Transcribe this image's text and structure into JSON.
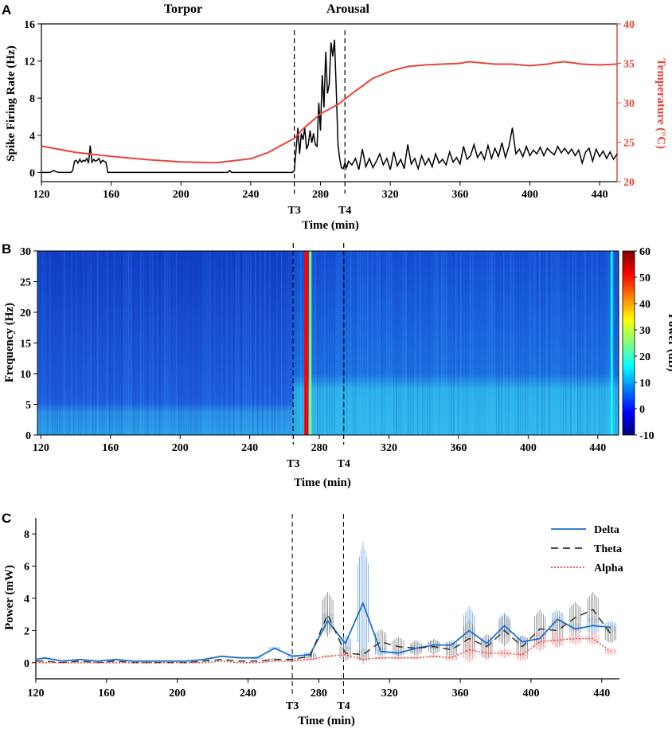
{
  "chart_data": [
    {
      "panel": "A",
      "type": "line",
      "phase_labels": [
        "Torpor",
        "Arousal"
      ],
      "xlabel": "Time (min)",
      "ylabel": "Spike Firing Rate (Hz)",
      "y2label": "Temperature (°C)",
      "xlim": [
        120,
        450
      ],
      "ylim": [
        -1,
        16
      ],
      "y2lim": [
        20,
        40
      ],
      "x_ticks": [
        120,
        160,
        200,
        240,
        280,
        320,
        360,
        400,
        440
      ],
      "y_ticks": [
        0,
        4,
        8,
        12,
        16
      ],
      "y2_ticks": [
        20,
        25,
        30,
        35,
        40
      ],
      "markers": [
        {
          "label": "T3",
          "x": 265
        },
        {
          "label": "T4",
          "x": 294
        }
      ],
      "series": [
        {
          "name": "Spike Firing Rate",
          "axis": "left",
          "color": "#000000",
          "x": [
            120,
            125,
            127,
            128,
            130,
            135,
            137,
            138,
            139,
            140,
            141,
            142,
            143,
            144,
            145,
            146,
            147,
            148,
            149,
            150,
            151,
            152,
            153,
            154,
            155,
            156,
            157,
            158,
            160,
            180,
            200,
            220,
            227,
            228,
            229,
            240,
            260,
            264,
            265,
            266,
            267,
            268,
            269,
            270,
            271,
            272,
            273,
            274,
            275,
            276,
            277,
            278,
            279,
            280,
            281,
            282,
            283,
            284,
            285,
            286,
            287,
            288,
            289,
            290,
            291,
            292,
            293,
            294,
            295,
            296,
            298,
            300,
            302,
            304,
            306,
            308,
            310,
            312,
            314,
            316,
            318,
            320,
            322,
            324,
            326,
            328,
            330,
            332,
            334,
            336,
            338,
            340,
            342,
            344,
            346,
            348,
            350,
            352,
            354,
            356,
            358,
            360,
            362,
            364,
            366,
            368,
            370,
            372,
            374,
            376,
            378,
            380,
            382,
            384,
            386,
            388,
            390,
            392,
            394,
            396,
            398,
            400,
            402,
            404,
            406,
            408,
            410,
            412,
            414,
            416,
            418,
            420,
            422,
            424,
            426,
            428,
            430,
            432,
            434,
            436,
            438,
            440,
            442,
            444,
            446,
            448,
            450
          ],
          "values": [
            0,
            0,
            0.2,
            0.1,
            0,
            0,
            0,
            0.2,
            1.2,
            1.3,
            1.0,
            1.4,
            1.1,
            1.3,
            1.2,
            1.5,
            1.0,
            2.9,
            1.1,
            1.4,
            1.2,
            1.3,
            1.5,
            1.0,
            1.3,
            1.2,
            1.1,
            0,
            0,
            0,
            0,
            0,
            0,
            0.2,
            0,
            0,
            0,
            0,
            0.2,
            2.5,
            4.8,
            2.0,
            4.2,
            3.5,
            4.8,
            2.5,
            3.0,
            4.5,
            3.2,
            4.2,
            3.0,
            2.8,
            7.5,
            4.5,
            10.5,
            7.0,
            13.0,
            8.5,
            9.5,
            14.0,
            12.5,
            14.3,
            9.0,
            3.0,
            1.5,
            0.5,
            0.4,
            1.0,
            0.5,
            1.2,
            0.8,
            1.5,
            0.3,
            2.5,
            0.6,
            1.5,
            0.5,
            1.2,
            2.0,
            0.8,
            1.5,
            0.3,
            2.2,
            0.7,
            1.4,
            0.4,
            3.0,
            0.9,
            1.5,
            0.4,
            1.8,
            0.8,
            1.5,
            0.6,
            2.0,
            1.0,
            1.4,
            0.8,
            2.2,
            1.1,
            1.6,
            0.9,
            2.8,
            1.4,
            1.8,
            3.0,
            1.6,
            2.2,
            1.4,
            2.9,
            1.5,
            2.6,
            1.7,
            3.2,
            1.6,
            2.8,
            4.8,
            2.0,
            2.5,
            1.7,
            2.8,
            1.8,
            2.4,
            2.0,
            2.7,
            1.8,
            2.6,
            2.2,
            1.9,
            2.8,
            2.1,
            2.6,
            2.0,
            2.5,
            1.8,
            2.4,
            1.0,
            2.2,
            2.6,
            1.2,
            2.5,
            1.7,
            2.3,
            1.5,
            2.2,
            1.4,
            2.0
          ]
        },
        {
          "name": "Temperature",
          "axis": "right",
          "color": "#e8453c",
          "x": [
            120,
            140,
            160,
            180,
            200,
            220,
            240,
            250,
            260,
            265,
            270,
            280,
            290,
            300,
            310,
            320,
            330,
            340,
            350,
            360,
            365,
            370,
            380,
            390,
            400,
            410,
            415,
            420,
            430,
            440,
            450
          ],
          "values": [
            24.5,
            23.7,
            23.2,
            22.8,
            22.5,
            22.4,
            22.9,
            23.7,
            24.9,
            25.5,
            26.7,
            28.6,
            29.8,
            31.5,
            33.1,
            34.0,
            34.6,
            34.8,
            34.9,
            35.0,
            35.2,
            35.1,
            34.9,
            34.9,
            34.7,
            34.9,
            35.1,
            35.2,
            34.9,
            34.8,
            34.9
          ]
        }
      ]
    },
    {
      "panel": "B",
      "type": "heatmap",
      "xlabel": "Time (min)",
      "ylabel": "Frequency (Hz)",
      "colorbar_label": "Power (dB)",
      "xlim": [
        118,
        452
      ],
      "ylim": [
        0,
        30
      ],
      "x_ticks": [
        120,
        160,
        200,
        240,
        280,
        320,
        360,
        400,
        440
      ],
      "y_ticks": [
        0,
        5,
        10,
        15,
        20,
        25,
        30
      ],
      "colorbar_ticks": [
        -10,
        0,
        10,
        20,
        30,
        40,
        50,
        60
      ],
      "colorbar_range": [
        -10,
        60
      ],
      "markers": [
        {
          "label": "T3",
          "x": 265
        },
        {
          "label": "T4",
          "x": 294
        }
      ],
      "bands": [
        {
          "x_range": [
            118,
            265
          ],
          "freq_range": [
            0,
            4
          ],
          "power_db": 12
        },
        {
          "x_range": [
            118,
            265
          ],
          "freq_range": [
            4,
            30
          ],
          "power_db": 2
        },
        {
          "x_range": [
            265,
            452
          ],
          "freq_range": [
            0,
            8
          ],
          "power_db": 14
        },
        {
          "x_range": [
            265,
            452
          ],
          "freq_range": [
            8,
            30
          ],
          "power_db": 5
        }
      ],
      "hot_columns": [
        {
          "x": 272.5,
          "power_db": 55
        },
        {
          "x": 274.8,
          "power_db": 25
        },
        {
          "x": 448,
          "power_db": 18
        }
      ]
    },
    {
      "panel": "C",
      "type": "line",
      "xlabel": "Time (min)",
      "ylabel": "Power (mW)",
      "xlim": [
        120,
        450
      ],
      "ylim": [
        -1,
        9
      ],
      "x_ticks": [
        120,
        160,
        200,
        240,
        280,
        320,
        360,
        400,
        440
      ],
      "y_ticks": [
        0,
        2,
        4,
        6,
        8
      ],
      "markers": [
        {
          "label": "T3",
          "x": 265
        },
        {
          "label": "T4",
          "x": 294
        }
      ],
      "series": [
        {
          "name": "Delta",
          "color": "#1f6fd1",
          "style": "solid",
          "x": [
            120,
            125,
            135,
            145,
            155,
            165,
            175,
            185,
            195,
            205,
            215,
            225,
            235,
            245,
            255,
            265,
            275,
            285,
            295,
            305,
            315,
            325,
            335,
            345,
            355,
            365,
            375,
            385,
            395,
            405,
            415,
            425,
            435,
            445
          ],
          "values": [
            0.2,
            0.3,
            0.1,
            0.2,
            0.1,
            0.2,
            0.1,
            0.1,
            0.1,
            0.1,
            0.2,
            0.4,
            0.3,
            0.3,
            0.9,
            0.4,
            0.5,
            2.6,
            1.2,
            3.7,
            0.7,
            0.6,
            0.9,
            1.1,
            1.1,
            2.0,
            1.2,
            2.3,
            1.3,
            1.5,
            2.7,
            2.1,
            2.3,
            2.2
          ],
          "error": [
            0.05,
            0.05,
            0.05,
            0.05,
            0.05,
            0.05,
            0.05,
            0.05,
            0.05,
            0.05,
            0.05,
            0.05,
            0.05,
            0.1,
            0.1,
            0.1,
            0.2,
            0.6,
            0.5,
            3.8,
            0.3,
            0.2,
            0.3,
            0.3,
            0.3,
            1.5,
            0.3,
            0.8,
            0.4,
            0.4,
            0.6,
            0.4,
            0.6,
            0.4
          ]
        },
        {
          "name": "Theta",
          "color": "#333333",
          "style": "dashed",
          "x": [
            120,
            125,
            135,
            145,
            155,
            165,
            175,
            185,
            195,
            205,
            215,
            225,
            235,
            245,
            255,
            265,
            275,
            285,
            295,
            305,
            315,
            325,
            335,
            345,
            355,
            365,
            375,
            385,
            395,
            405,
            415,
            425,
            435,
            445
          ],
          "values": [
            0.1,
            0.1,
            0.0,
            0.1,
            0.0,
            0.1,
            0.0,
            0.0,
            0.0,
            0.0,
            0.1,
            0.2,
            0.1,
            0.1,
            0.2,
            0.2,
            0.4,
            3.0,
            0.6,
            0.5,
            1.3,
            1.0,
            0.9,
            1.0,
            0.8,
            1.5,
            1.0,
            2.0,
            1.0,
            2.1,
            2.0,
            2.8,
            3.3,
            1.8
          ],
          "error": [
            0.05,
            0.05,
            0.05,
            0.05,
            0.05,
            0.05,
            0.05,
            0.05,
            0.05,
            0.05,
            0.05,
            0.05,
            0.05,
            0.05,
            0.1,
            0.1,
            0.2,
            1.4,
            0.5,
            0.4,
            0.8,
            0.6,
            0.5,
            0.5,
            0.5,
            1.2,
            0.8,
            1.0,
            0.7,
            1.2,
            1.0,
            1.0,
            1.1,
            0.6
          ]
        },
        {
          "name": "Alpha",
          "color": "#e8453c",
          "style": "dotted",
          "x": [
            120,
            125,
            135,
            145,
            155,
            165,
            175,
            185,
            195,
            205,
            215,
            225,
            235,
            245,
            255,
            265,
            275,
            285,
            295,
            305,
            315,
            325,
            335,
            345,
            355,
            365,
            375,
            385,
            395,
            405,
            415,
            425,
            435,
            445
          ],
          "values": [
            0.0,
            0.0,
            0.0,
            0.0,
            0.0,
            0.0,
            0.0,
            0.0,
            0.0,
            0.0,
            0.0,
            0.1,
            0.0,
            0.0,
            0.1,
            0.1,
            0.2,
            0.4,
            0.5,
            0.2,
            0.3,
            0.3,
            0.3,
            0.4,
            0.3,
            0.8,
            0.6,
            0.6,
            0.5,
            1.3,
            1.4,
            1.5,
            1.5,
            0.7
          ],
          "error": [
            0.02,
            0.02,
            0.02,
            0.02,
            0.02,
            0.02,
            0.02,
            0.02,
            0.02,
            0.02,
            0.02,
            0.02,
            0.02,
            0.02,
            0.05,
            0.05,
            0.1,
            0.1,
            0.1,
            0.1,
            0.1,
            0.1,
            0.1,
            0.1,
            0.2,
            0.8,
            0.4,
            0.3,
            0.4,
            0.6,
            0.5,
            0.4,
            0.4,
            0.2
          ]
        }
      ]
    }
  ],
  "colors": {
    "spike": "#000000",
    "temperature": "#e8453c",
    "delta": "#1f6fd1",
    "theta": "#333333",
    "alpha": "#e8453c"
  }
}
